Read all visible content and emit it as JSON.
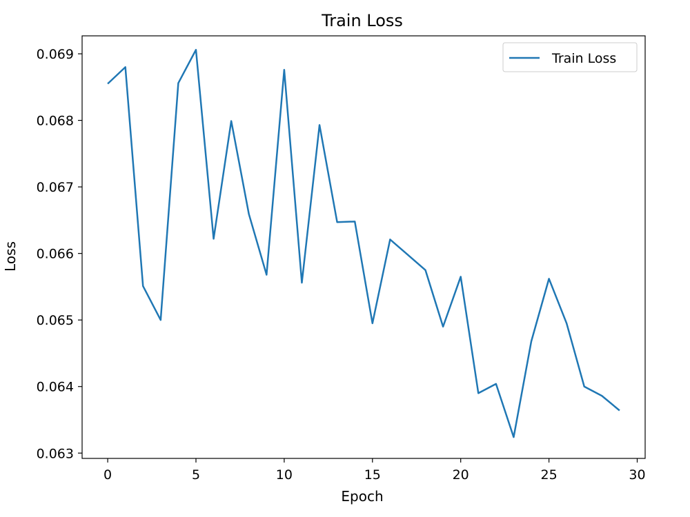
{
  "chart_data": {
    "type": "line",
    "title": "Train Loss",
    "xlabel": "Epoch",
    "ylabel": "Loss",
    "xlim": [
      -1.45,
      30.45
    ],
    "ylim": [
      0.06292,
      0.06927
    ],
    "xticks": [
      0,
      5,
      10,
      15,
      20,
      25,
      30
    ],
    "yticks": [
      0.063,
      0.064,
      0.065,
      0.066,
      0.067,
      0.068,
      0.069
    ],
    "ytick_labels": [
      "0.063",
      "0.064",
      "0.065",
      "0.066",
      "0.067",
      "0.068",
      "0.069"
    ],
    "grid": false,
    "legend": {
      "position": "top-right",
      "entries": [
        "Train Loss"
      ]
    },
    "series": [
      {
        "name": "Train Loss",
        "color": "#1f77b4",
        "x": [
          0,
          1,
          2,
          3,
          4,
          5,
          6,
          7,
          8,
          9,
          10,
          11,
          12,
          13,
          14,
          15,
          16,
          17,
          18,
          19,
          20,
          21,
          22,
          23,
          24,
          25,
          26,
          27,
          28,
          29
        ],
        "values": [
          0.06855,
          0.0688,
          0.06551,
          0.065,
          0.06856,
          0.06906,
          0.06622,
          0.06799,
          0.06659,
          0.06568,
          0.06876,
          0.06556,
          0.06793,
          0.06647,
          0.06648,
          0.06495,
          0.06621,
          0.06598,
          0.06575,
          0.0649,
          0.06565,
          0.0639,
          0.06404,
          0.06324,
          0.06468,
          0.06562,
          0.06495,
          0.064,
          0.06386,
          0.06364
        ]
      }
    ]
  }
}
